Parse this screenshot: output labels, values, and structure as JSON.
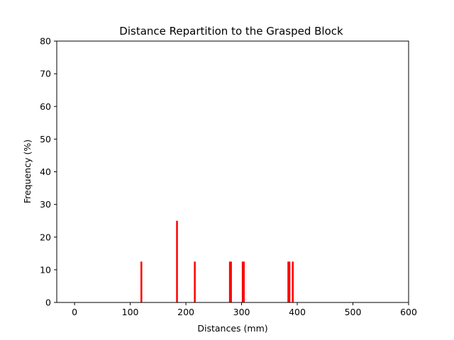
{
  "chart_data": {
    "type": "bar",
    "title": "Distance Repartition to the Grasped Block",
    "xlabel": "Distances (mm)",
    "ylabel": "Frequency (%)",
    "xlim": [
      -32,
      600
    ],
    "ylim": [
      0,
      80
    ],
    "xticks": [
      0,
      100,
      200,
      300,
      400,
      500,
      600
    ],
    "yticks": [
      0,
      10,
      20,
      30,
      40,
      50,
      60,
      70,
      80
    ],
    "grid": false,
    "bar_color": "#ff0000",
    "bar_width": 3.2,
    "x": [
      120,
      184,
      216,
      279,
      281,
      302,
      304,
      384,
      386,
      392
    ],
    "values": [
      12.5,
      25,
      12.5,
      12.5,
      12.5,
      12.5,
      12.5,
      12.5,
      12.5,
      12.5
    ]
  }
}
